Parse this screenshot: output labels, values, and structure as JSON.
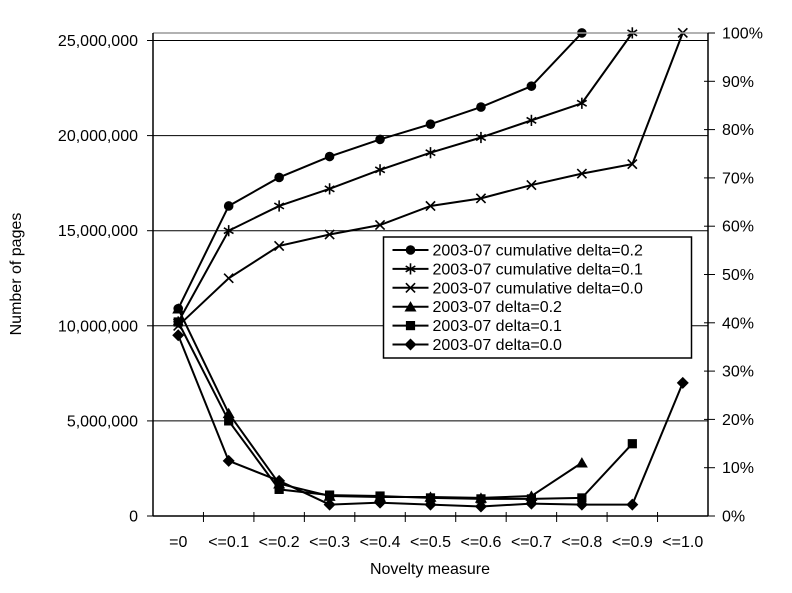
{
  "chart_data": {
    "type": "line",
    "title": "",
    "xlabel": "Novelty measure",
    "ylabel": "Number of pages",
    "categories": [
      "=0",
      "<=0.1",
      "<=0.2",
      "<=0.3",
      "<=0.4",
      "<=0.5",
      "<=0.6",
      "<=0.7",
      "<=0.8",
      "<=0.9",
      "<=1.0"
    ],
    "left_axis": {
      "min": 0,
      "max": 25000000,
      "tick_interval": 5000000,
      "tick_labels": [
        "0",
        "5,000,000",
        "10,000,000",
        "15,000,000",
        "20,000,000",
        "25,000,000"
      ]
    },
    "right_axis": {
      "min": 0,
      "max": 100,
      "tick_interval": 10,
      "tick_labels": [
        "0%",
        "10%",
        "20%",
        "30%",
        "40%",
        "50%",
        "60%",
        "70%",
        "80%",
        "90%",
        "100%"
      ]
    },
    "grid": "horizontal",
    "legend_position": "inside right",
    "series": [
      {
        "name": "2003-07 cumulative delta=0.2",
        "marker": "circle",
        "values": [
          10900000,
          16300000,
          17800000,
          18900000,
          19800000,
          20600000,
          21500000,
          22600000,
          25400000,
          null,
          null
        ]
      },
      {
        "name": "2003-07 cumulative delta=0.1",
        "marker": "asterisk",
        "values": [
          10200000,
          15000000,
          16300000,
          17200000,
          18200000,
          19100000,
          19900000,
          20800000,
          21700000,
          25400000,
          null
        ]
      },
      {
        "name": "2003-07 cumulative delta=0.0",
        "marker": "x",
        "values": [
          10000000,
          12500000,
          14200000,
          14800000,
          15300000,
          16300000,
          16700000,
          17400000,
          18000000,
          18500000,
          25400000
        ]
      },
      {
        "name": "2003-07 delta=0.2",
        "marker": "triangle",
        "values": [
          10900000,
          5400000,
          1700000,
          1050000,
          1000000,
          1000000,
          950000,
          1050000,
          2800000,
          null,
          null
        ]
      },
      {
        "name": "2003-07 delta=0.1",
        "marker": "square",
        "values": [
          10200000,
          5000000,
          1400000,
          1100000,
          1050000,
          950000,
          900000,
          900000,
          950000,
          3800000,
          null
        ]
      },
      {
        "name": "2003-07 delta=0.0",
        "marker": "diamond",
        "values": [
          9500000,
          2900000,
          1850000,
          600000,
          700000,
          600000,
          500000,
          650000,
          600000,
          600000,
          7000000
        ]
      }
    ]
  }
}
